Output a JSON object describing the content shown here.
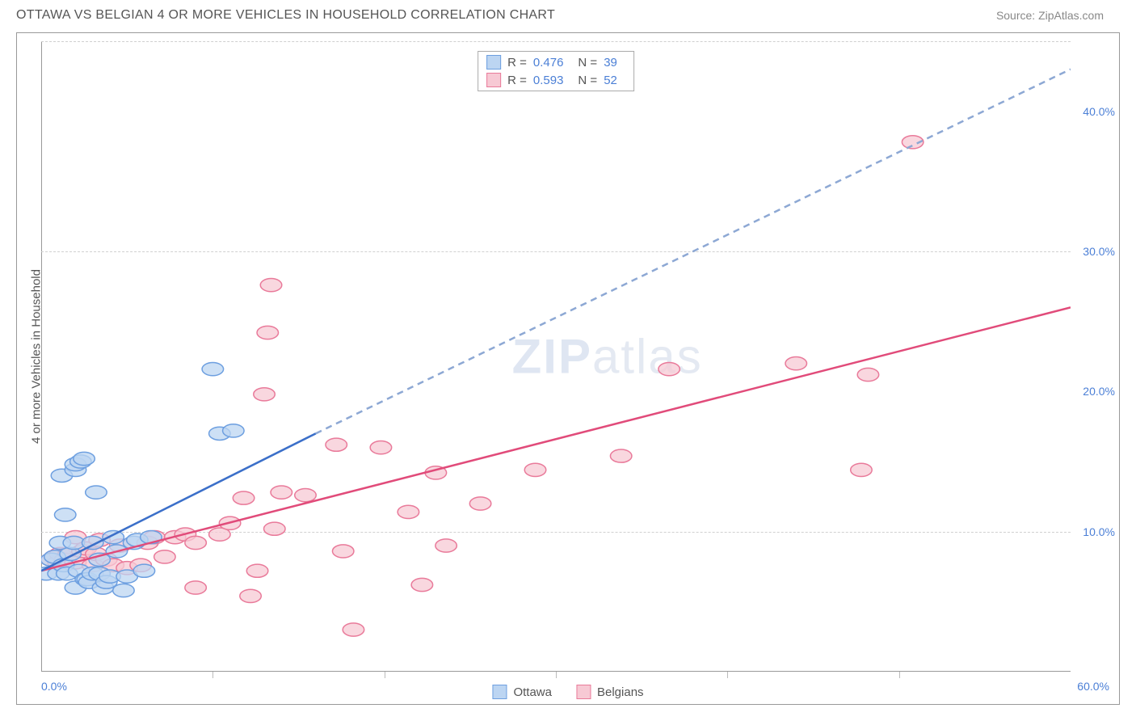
{
  "header": {
    "title": "OTTAWA VS BELGIAN 4 OR MORE VEHICLES IN HOUSEHOLD CORRELATION CHART",
    "source": "Source: ZipAtlas.com"
  },
  "watermark": {
    "zip": "ZIP",
    "atlas": "atlas"
  },
  "chart": {
    "type": "scatter",
    "ylabel": "4 or more Vehicles in Household",
    "x_domain": [
      0,
      60
    ],
    "y_domain": [
      0,
      45
    ],
    "x_ticks": [
      0,
      10,
      20,
      30,
      40,
      50,
      60
    ],
    "x_tick_labels": {
      "start": "0.0%",
      "end": "60.0%"
    },
    "y_ticks": [
      10,
      20,
      30,
      40
    ],
    "y_tick_labels": [
      "10.0%",
      "20.0%",
      "30.0%",
      "40.0%"
    ],
    "y_gridlines": [
      10,
      30,
      45
    ],
    "background_color": "#ffffff",
    "grid_color": "#d0d0d0",
    "series": {
      "ottawa": {
        "label": "Ottawa",
        "marker_fill": "#bcd5f2",
        "marker_stroke": "#6d9fe0",
        "marker_radius": 8,
        "line_color": "#3b6fc9",
        "line_dash_color": "#8da8d4",
        "r_value": "0.476",
        "n_value": "39",
        "trend_solid": {
          "x1": 0,
          "y1": 7.2,
          "x2": 16,
          "y2": 17
        },
        "trend_dash": {
          "x1": 16,
          "y1": 17,
          "x2": 60,
          "y2": 43
        },
        "points": [
          [
            0.3,
            7.0
          ],
          [
            0.6,
            8.0
          ],
          [
            0.8,
            8.2
          ],
          [
            1.0,
            7.0
          ],
          [
            1.1,
            9.2
          ],
          [
            1.2,
            14.0
          ],
          [
            1.3,
            7.6
          ],
          [
            1.4,
            11.2
          ],
          [
            1.5,
            7.0
          ],
          [
            1.7,
            8.4
          ],
          [
            1.9,
            9.2
          ],
          [
            2.0,
            14.4
          ],
          [
            2.0,
            14.8
          ],
          [
            2.0,
            6.0
          ],
          [
            2.2,
            7.2
          ],
          [
            2.3,
            15.0
          ],
          [
            2.5,
            15.2
          ],
          [
            2.6,
            6.6
          ],
          [
            2.7,
            6.6
          ],
          [
            2.8,
            6.4
          ],
          [
            3.0,
            9.2
          ],
          [
            3.0,
            7.0
          ],
          [
            3.2,
            12.8
          ],
          [
            3.4,
            7.0
          ],
          [
            3.4,
            8.0
          ],
          [
            3.6,
            6.0
          ],
          [
            3.8,
            6.4
          ],
          [
            4.0,
            6.8
          ],
          [
            4.2,
            9.6
          ],
          [
            4.4,
            8.6
          ],
          [
            5.0,
            6.8
          ],
          [
            5.4,
            9.2
          ],
          [
            5.6,
            9.4
          ],
          [
            6.0,
            7.2
          ],
          [
            6.4,
            9.6
          ],
          [
            10.0,
            21.6
          ],
          [
            10.4,
            17.0
          ],
          [
            11.2,
            17.2
          ],
          [
            4.8,
            5.8
          ]
        ]
      },
      "belgians": {
        "label": "Belgians",
        "marker_fill": "#f7c9d4",
        "marker_stroke": "#e97a9a",
        "marker_radius": 8,
        "line_color": "#e14b7a",
        "r_value": "0.593",
        "n_value": "52",
        "trend_solid": {
          "x1": 0,
          "y1": 7.2,
          "x2": 60,
          "y2": 26
        },
        "points": [
          [
            0.6,
            8.0
          ],
          [
            0.8,
            8.2
          ],
          [
            1.0,
            7.8
          ],
          [
            1.1,
            8.4
          ],
          [
            1.4,
            8.0
          ],
          [
            1.6,
            8.4
          ],
          [
            2.0,
            7.8
          ],
          [
            2.0,
            9.6
          ],
          [
            2.4,
            8.6
          ],
          [
            2.6,
            8.8
          ],
          [
            3.0,
            7.6
          ],
          [
            3.2,
            8.4
          ],
          [
            3.4,
            9.4
          ],
          [
            3.8,
            8.0
          ],
          [
            4.2,
            7.6
          ],
          [
            4.6,
            9.0
          ],
          [
            5.0,
            7.4
          ],
          [
            5.8,
            7.6
          ],
          [
            6.2,
            9.2
          ],
          [
            6.6,
            9.6
          ],
          [
            7.2,
            8.2
          ],
          [
            7.8,
            9.6
          ],
          [
            8.4,
            9.8
          ],
          [
            9.0,
            6.0
          ],
          [
            9.0,
            9.2
          ],
          [
            10.4,
            9.8
          ],
          [
            11.0,
            10.6
          ],
          [
            11.8,
            12.4
          ],
          [
            12.2,
            5.4
          ],
          [
            12.6,
            7.2
          ],
          [
            13.0,
            19.8
          ],
          [
            13.2,
            24.2
          ],
          [
            13.4,
            27.6
          ],
          [
            13.6,
            10.2
          ],
          [
            14.0,
            12.8
          ],
          [
            15.4,
            12.6
          ],
          [
            17.2,
            16.2
          ],
          [
            17.6,
            8.6
          ],
          [
            18.2,
            3.0
          ],
          [
            19.8,
            16.0
          ],
          [
            21.4,
            11.4
          ],
          [
            22.2,
            6.2
          ],
          [
            23.0,
            14.2
          ],
          [
            23.6,
            9.0
          ],
          [
            25.6,
            12.0
          ],
          [
            28.8,
            14.4
          ],
          [
            33.8,
            15.4
          ],
          [
            36.6,
            21.6
          ],
          [
            44.0,
            22.0
          ],
          [
            48.2,
            21.2
          ],
          [
            50.8,
            37.8
          ],
          [
            47.8,
            14.4
          ]
        ]
      }
    },
    "legend_bottom": [
      {
        "label": "Ottawa",
        "fill": "#bcd5f2",
        "stroke": "#6d9fe0"
      },
      {
        "label": "Belgians",
        "fill": "#f7c9d4",
        "stroke": "#e97a9a"
      }
    ]
  }
}
